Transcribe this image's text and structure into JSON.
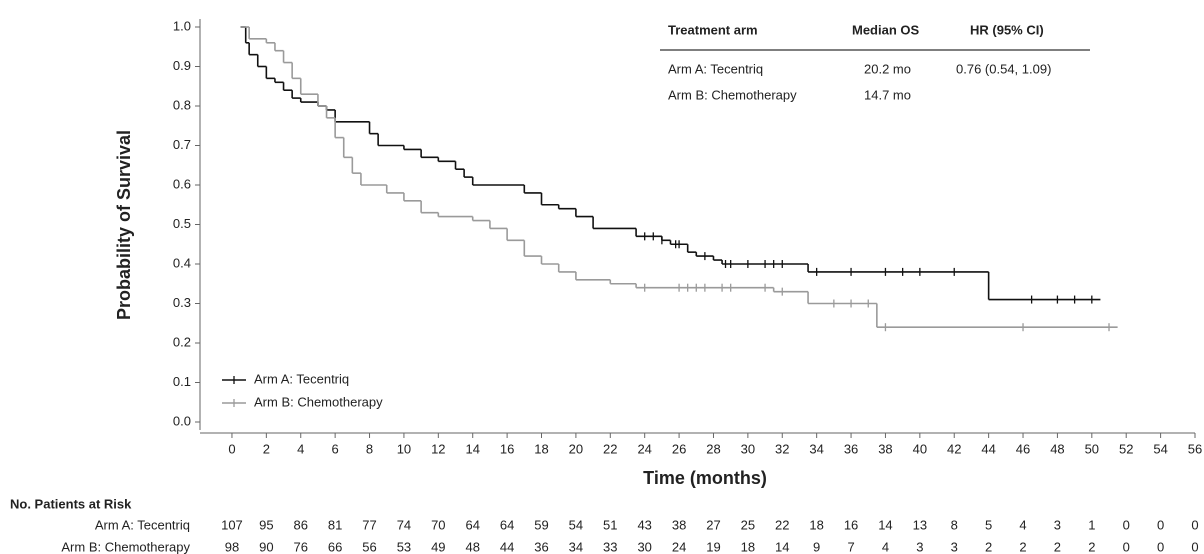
{
  "chart_data": {
    "type": "km",
    "y_label": "Probability of Survival",
    "x_label": "Time (months)",
    "xlim": [
      -1.8,
      56
    ],
    "ylim": [
      0,
      1
    ],
    "xticks": [
      0,
      2,
      4,
      6,
      8,
      10,
      12,
      14,
      16,
      18,
      20,
      22,
      24,
      26,
      28,
      30,
      32,
      34,
      36,
      38,
      40,
      42,
      44,
      46,
      48,
      50,
      52,
      54,
      56
    ],
    "yticks": [
      {
        "value": 0,
        "label": "0.0"
      },
      0.1,
      0.2,
      0.3,
      0.4,
      0.5,
      0.6,
      0.7,
      0.8,
      0.9,
      {
        "value": 1,
        "label": "1.0"
      }
    ],
    "legend": "lower left",
    "series": [
      {
        "name": "Arm A: Tecentriq",
        "color": "#111111",
        "x": [
          0.5,
          0.8,
          1,
          1.5,
          2,
          2.5,
          3,
          3.5,
          4,
          5,
          5.5,
          6,
          8,
          8.5,
          10,
          11,
          12,
          13,
          13.5,
          14,
          17,
          18,
          19,
          20,
          21,
          23.5,
          25,
          25.5,
          26.5,
          27,
          28,
          28.5,
          33.5,
          44,
          50.5
        ],
        "values": [
          1.0,
          0.96,
          0.93,
          0.9,
          0.87,
          0.86,
          0.84,
          0.82,
          0.81,
          0.8,
          0.79,
          0.76,
          0.73,
          0.7,
          0.69,
          0.67,
          0.66,
          0.64,
          0.62,
          0.6,
          0.58,
          0.55,
          0.54,
          0.52,
          0.49,
          0.47,
          0.46,
          0.45,
          0.43,
          0.42,
          0.41,
          0.4,
          0.38,
          0.31,
          0.31
        ],
        "censored": [
          24,
          24.5,
          25,
          25.8,
          26,
          27.5,
          28.7,
          29,
          30,
          31,
          31.5,
          32,
          34,
          36,
          38,
          39,
          40,
          42,
          46.5,
          48,
          49,
          50
        ]
      },
      {
        "name": "Arm B: Chemotherapy",
        "color": "#9a9a9a",
        "x": [
          0.5,
          1,
          2,
          2.5,
          3,
          3.5,
          4,
          5,
          5.5,
          6,
          6.5,
          7,
          7.5,
          9,
          10,
          11,
          12,
          14,
          15,
          16,
          17,
          18,
          19,
          20,
          22,
          23.5,
          31.5,
          33.5,
          37.5,
          51.5
        ],
        "values": [
          1.0,
          0.97,
          0.96,
          0.94,
          0.91,
          0.87,
          0.83,
          0.8,
          0.77,
          0.72,
          0.67,
          0.63,
          0.6,
          0.58,
          0.56,
          0.53,
          0.52,
          0.51,
          0.49,
          0.46,
          0.42,
          0.4,
          0.38,
          0.36,
          0.35,
          0.34,
          0.33,
          0.3,
          0.24,
          0.24
        ],
        "censored": [
          24,
          26,
          26.5,
          27,
          27.5,
          28.5,
          29,
          31,
          32,
          35,
          36,
          37,
          38,
          46,
          51
        ]
      }
    ]
  },
  "summary_table": {
    "header": [
      "Treatment arm",
      "Median OS",
      "HR (95% CI)"
    ],
    "rows": [
      [
        "Arm A: Tecentriq",
        "20.2 mo",
        "0.76 (0.54, 1.09)"
      ],
      [
        "Arm B: Chemotherapy",
        "14.7 mo"
      ]
    ]
  },
  "risk_table": {
    "title": "No. Patients at Risk",
    "rows": [
      {
        "label": "Arm A: Tecentriq",
        "counts": [
          107,
          95,
          86,
          81,
          77,
          74,
          70,
          64,
          64,
          59,
          54,
          51,
          43,
          38,
          27,
          25,
          22,
          18,
          16,
          14,
          13,
          8,
          5,
          4,
          3,
          1,
          0,
          0,
          0
        ]
      },
      {
        "label": "Arm B: Chemotherapy",
        "counts": [
          98,
          90,
          76,
          66,
          56,
          53,
          49,
          48,
          44,
          36,
          34,
          33,
          30,
          24,
          19,
          18,
          14,
          9,
          7,
          4,
          3,
          3,
          2,
          2,
          2,
          2,
          0,
          0,
          0
        ]
      }
    ]
  }
}
